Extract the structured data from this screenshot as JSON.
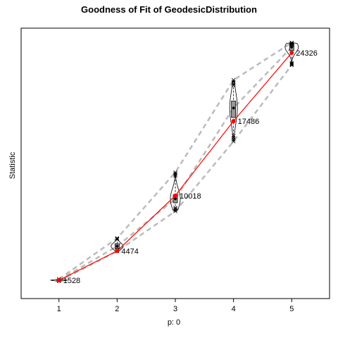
{
  "chart_data": {
    "type": "line",
    "title": "Goodness of Fit of GeodesicDistribution",
    "xlabel": "p: 0",
    "ylabel": "Statistic",
    "x": [
      1,
      2,
      3,
      4,
      5
    ],
    "xlim": [
      0.35,
      5.65
    ],
    "ylim": [
      -300,
      26800
    ],
    "grid": false,
    "legend": "none",
    "series": [
      {
        "values": [
          1528,
          4474,
          10018,
          17486,
          24326
        ],
        "labels": [
          "1528",
          "4474",
          "10018",
          "17486",
          "24326"
        ],
        "color": "#ff0000"
      }
    ],
    "simulated": [
      {
        "x": 1,
        "min": 1450,
        "q1": 1510,
        "median": 1540,
        "q3": 1570,
        "max": 1650,
        "violin_width": 0.3
      },
      {
        "x": 2,
        "min": 4450,
        "q1": 4750,
        "median": 4950,
        "q3": 5200,
        "max": 5750,
        "violin_width": 0.22
      },
      {
        "x": 3,
        "min": 8450,
        "q1": 9300,
        "median": 9700,
        "q3": 10100,
        "max": 12350,
        "violin_width": 0.18
      },
      {
        "x": 4,
        "min": 15450,
        "q1": 17850,
        "median": 18800,
        "q3": 19500,
        "max": 21600,
        "violin_width": 0.14
      },
      {
        "x": 5,
        "min": 23100,
        "q1": 24550,
        "median": 24900,
        "q3": 25250,
        "max": 25350,
        "violin_width": 0.24
      }
    ],
    "colors": {
      "statistic": "#ff0000",
      "dashed": "#bbbbbb",
      "box_fill": "#999999",
      "outline": "#000000"
    }
  }
}
